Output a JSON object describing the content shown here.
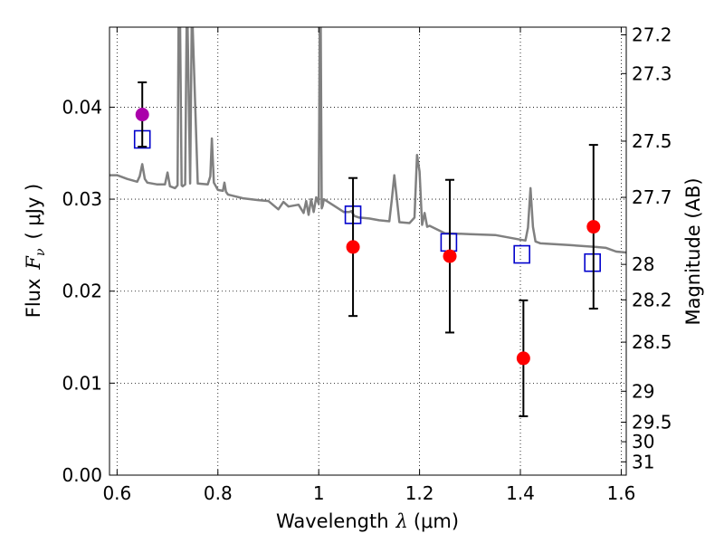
{
  "chart_data": {
    "type": "scatter",
    "xlabel_text": "Wavelength",
    "xlabel_symbol": "λ",
    "xlabel_unit": "(μm)",
    "ylabel_text": "Flux",
    "ylabel_symbol": "F",
    "ylabel_subscript": "ν",
    "ylabel_unit": "( μJy )",
    "y2label": "Magnitude (AB)",
    "xlim": [
      0.585,
      1.61
    ],
    "ylim": [
      0.0,
      0.0487
    ],
    "grid": true,
    "x_ticks": [
      {
        "value": 0.6,
        "label": "0.6"
      },
      {
        "value": 0.8,
        "label": "0.8"
      },
      {
        "value": 1.0,
        "label": "1"
      },
      {
        "value": 1.2,
        "label": "1.2"
      },
      {
        "value": 1.4,
        "label": "1.4"
      },
      {
        "value": 1.6,
        "label": "1.6"
      }
    ],
    "y_ticks": [
      {
        "value": 0.0,
        "label": "0.00"
      },
      {
        "value": 0.01,
        "label": "0.01"
      },
      {
        "value": 0.02,
        "label": "0.02"
      },
      {
        "value": 0.03,
        "label": "0.03"
      },
      {
        "value": 0.04,
        "label": "0.04"
      }
    ],
    "y2_ticks": [
      {
        "value": 27.2,
        "label": "27.2"
      },
      {
        "value": 27.3,
        "label": "27.3"
      },
      {
        "value": 27.5,
        "label": "27.5"
      },
      {
        "value": 27.7,
        "label": "27.7"
      },
      {
        "value": 28.0,
        "label": "28"
      },
      {
        "value": 28.2,
        "label": "28.2"
      },
      {
        "value": 28.5,
        "label": "28.5"
      },
      {
        "value": 29.0,
        "label": "29"
      },
      {
        "value": 29.5,
        "label": "29.5"
      },
      {
        "value": 30.0,
        "label": "30"
      },
      {
        "value": 31.0,
        "label": "31"
      }
    ],
    "series": [
      {
        "kind": "line",
        "color": "#808080",
        "x": [
          0.585,
          0.6,
          0.62,
          0.64,
          0.645,
          0.65,
          0.655,
          0.66,
          0.68,
          0.695,
          0.7,
          0.705,
          0.715,
          0.72,
          0.722,
          0.725,
          0.728,
          0.73,
          0.735,
          0.738,
          0.74,
          0.745,
          0.748,
          0.75,
          0.76,
          0.78,
          0.785,
          0.788,
          0.792,
          0.8,
          0.81,
          0.813,
          0.816,
          0.82,
          0.85,
          0.88,
          0.9,
          0.92,
          0.93,
          0.94,
          0.96,
          0.97,
          0.975,
          0.98,
          0.985,
          0.99,
          0.995,
          1.0,
          1.002,
          1.004,
          1.006,
          1.008,
          1.01,
          1.03,
          1.05,
          1.06,
          1.065,
          1.07,
          1.08,
          1.1,
          1.12,
          1.14,
          1.145,
          1.15,
          1.16,
          1.18,
          1.19,
          1.195,
          1.2,
          1.205,
          1.21,
          1.215,
          1.22,
          1.25,
          1.3,
          1.35,
          1.4,
          1.41,
          1.415,
          1.42,
          1.425,
          1.43,
          1.44,
          1.5,
          1.55,
          1.57,
          1.59,
          1.61
        ],
        "y": [
          0.0326,
          0.0326,
          0.0322,
          0.0319,
          0.0325,
          0.0338,
          0.0322,
          0.0318,
          0.0316,
          0.0316,
          0.0329,
          0.0314,
          0.0312,
          0.0315,
          0.0487,
          0.0487,
          0.0315,
          0.0314,
          0.0316,
          0.0487,
          0.0487,
          0.0317,
          0.0487,
          0.0487,
          0.0317,
          0.0316,
          0.0325,
          0.0366,
          0.0318,
          0.031,
          0.0309,
          0.0318,
          0.0308,
          0.0305,
          0.0301,
          0.0299,
          0.0298,
          0.0289,
          0.0297,
          0.0292,
          0.0294,
          0.0285,
          0.0298,
          0.0283,
          0.03,
          0.0286,
          0.0302,
          0.0295,
          0.0487,
          0.0487,
          0.029,
          0.0293,
          0.03,
          0.0293,
          0.0286,
          0.0286,
          0.0287,
          0.0282,
          0.028,
          0.0279,
          0.0277,
          0.0276,
          0.03,
          0.0326,
          0.0275,
          0.0274,
          0.028,
          0.0348,
          0.033,
          0.0272,
          0.0285,
          0.027,
          0.0271,
          0.0263,
          0.0262,
          0.0261,
          0.0256,
          0.0255,
          0.0269,
          0.0312,
          0.027,
          0.0254,
          0.0252,
          0.025,
          0.0248,
          0.0247,
          0.0243,
          0.0242
        ]
      },
      {
        "kind": "square",
        "color": "#0000cc",
        "x": [
          0.65,
          1.068,
          1.258,
          1.403,
          1.543
        ],
        "y": [
          0.0365,
          0.0283,
          0.0253,
          0.024,
          0.0231
        ]
      },
      {
        "kind": "dot",
        "color": "#ff0000",
        "x": [
          1.068,
          1.26,
          1.406,
          1.545
        ],
        "y": [
          0.0248,
          0.0238,
          0.0127,
          0.027
        ],
        "yerr": [
          0.0075,
          0.0083,
          0.0063,
          0.0089
        ]
      },
      {
        "kind": "dot",
        "color": "#aa00aa",
        "x": [
          0.65
        ],
        "y": [
          0.0392
        ],
        "yerr": [
          0.0035
        ]
      }
    ]
  }
}
